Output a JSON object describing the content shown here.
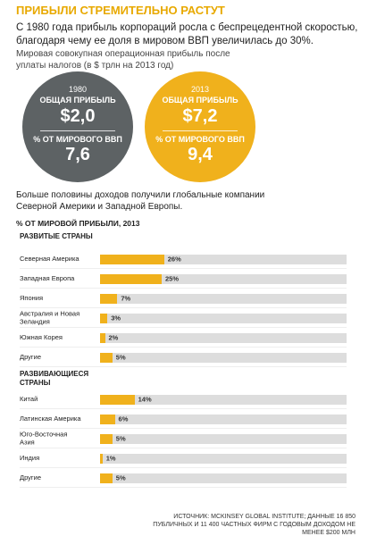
{
  "title": "ПРИБЫЛИ СТРЕМИТЕЛЬНО РАСТУТ",
  "intro": "С 1980 года прибыль корпораций росла с беспрецедентной скоростью, благодаря чему ее доля в мировом ВВП увеличилась до 30%.",
  "circles_caption": "Мировая совокупная операционная прибыль после уплаты налогов (в $ трлн на 2013 год)",
  "circles": [
    {
      "year": "1980",
      "profit_label": "ОБЩАЯ ПРИБЫЛЬ",
      "profit": "$2,0",
      "gdp_label": "% ОТ МИРОВОГО ВВП",
      "gdp": "7,6",
      "color": "#5d6264"
    },
    {
      "year": "2013",
      "profit_label": "ОБЩАЯ ПРИБЫЛЬ",
      "profit": "$7,2",
      "gdp_label": "% ОТ МИРОВОГО ВВП",
      "gdp": "9,4",
      "color": "#f0b11c"
    }
  ],
  "chart_data": {
    "type": "bar",
    "orientation": "horizontal",
    "subtitle": "Больше половины доходов получили глобальные компании Северной Америки и Западной Европы.",
    "title": "% ОТ МИРОВОЙ ПРИБЫЛИ, 2013",
    "color": "#f0b11c",
    "track_color": "#dddddd",
    "xlim": [
      0,
      100
    ],
    "groups": [
      {
        "name": "РАЗВИТЫЕ СТРАНЫ",
        "categories": [
          "Северная Америка",
          "Западная Европа",
          "Япония",
          "Австралия и Новая Зеландия",
          "Южная Корея",
          "Другие"
        ],
        "values": [
          26,
          25,
          7,
          3,
          2,
          5
        ],
        "value_labels": [
          "26%",
          "25%",
          "7%",
          "3%",
          "2%",
          "5%"
        ]
      },
      {
        "name": "РАЗВИВАЮЩИЕСЯ СТРАНЫ",
        "categories": [
          "Китай",
          "Латинская Америка",
          "Юго-Восточная Азия",
          "Индия",
          "Другие"
        ],
        "values": [
          14,
          6,
          5,
          1,
          5
        ],
        "value_labels": [
          "14%",
          "6%",
          "5%",
          "1%",
          "5%"
        ]
      }
    ]
  },
  "source": "ИСТОЧНИК: MCKINSEY GLOBAL INSTITUTE; ДАННЫЕ 16 850 ПУБЛИЧНЫХ И 11 400 ЧАСТНЫХ ФИРМ С ГОДОВЫМ ДОХОДОМ НЕ МЕНЕЕ $200 МЛН"
}
